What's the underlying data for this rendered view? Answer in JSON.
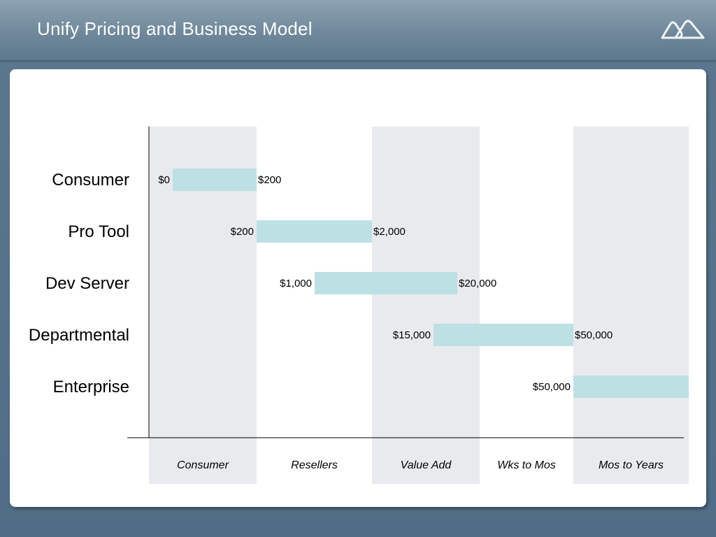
{
  "header": {
    "title": "Unify Pricing and Business Model",
    "logo_icon": "mountains-logo-icon"
  },
  "colors": {
    "bar": "#bde0e4",
    "column_band": "#e9eaee",
    "axis": "#000000",
    "title_text": "#ffffff"
  },
  "chart_data": {
    "type": "bar",
    "orientation": "horizontal-range",
    "rows": [
      "Consumer",
      "Pro Tool",
      "Dev Server",
      "Departmental",
      "Enterprise"
    ],
    "columns": [
      "Consumer",
      "Resellers",
      "Value Add",
      "Wks to Mos",
      "Mos to Years"
    ],
    "series": [
      {
        "row": "Consumer",
        "low_label": "$0",
        "high_label": "$200",
        "low": 0,
        "high": 200
      },
      {
        "row": "Pro Tool",
        "low_label": "$200",
        "high_label": "$2,000",
        "low": 200,
        "high": 2000
      },
      {
        "row": "Dev Server",
        "low_label": "$1,000",
        "high_label": "$20,000",
        "low": 1000,
        "high": 20000
      },
      {
        "row": "Departmental",
        "low_label": "$15,000",
        "high_label": "$50,000",
        "low": 15000,
        "high": 50000
      },
      {
        "row": "Enterprise",
        "low_label": "$50,000",
        "high_label": "",
        "low": 50000,
        "high": null
      }
    ],
    "shaded_columns": [
      "Consumer",
      "Value Add",
      "Mos to Years"
    ],
    "grid": false,
    "legend": "none"
  }
}
